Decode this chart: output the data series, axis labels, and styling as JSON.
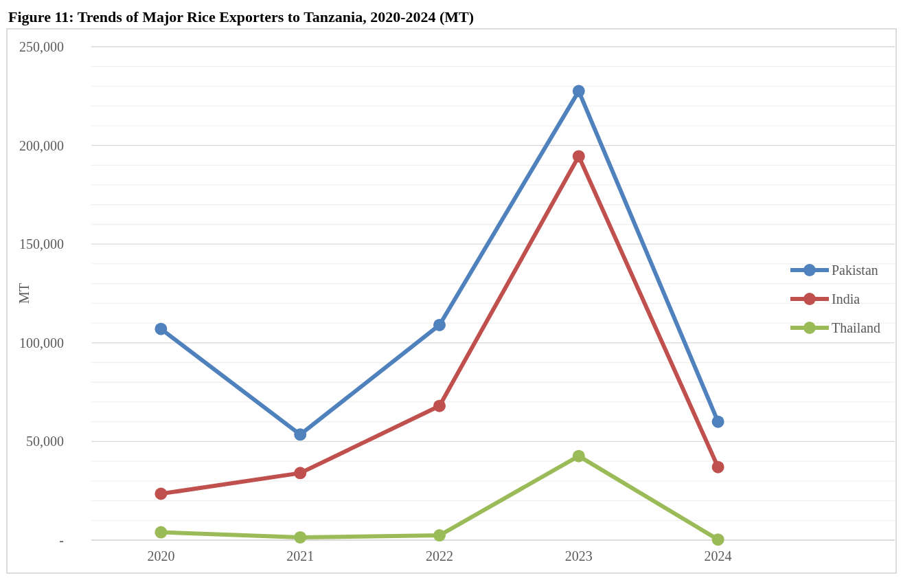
{
  "chart_data": {
    "type": "line",
    "title": "Figure 11: Trends of Major Rice Exporters to Tanzania, 2020-2024 (MT)",
    "ylabel": "MT",
    "categories": [
      "2020",
      "2021",
      "2022",
      "2023",
      "2024"
    ],
    "series": [
      {
        "name": "Pakistan",
        "color": "#4f81bd",
        "values": [
          107000,
          53500,
          109000,
          227500,
          60000
        ]
      },
      {
        "name": "India",
        "color": "#c0504d",
        "values": [
          23500,
          34000,
          68000,
          194500,
          37000
        ]
      },
      {
        "name": "Thailand",
        "color": "#9bbb59",
        "values": [
          4000,
          1400,
          2400,
          42600,
          300
        ]
      }
    ],
    "ylim": [
      0,
      250000
    ],
    "yticks": [
      {
        "value": 0,
        "label": "-"
      },
      {
        "value": 10000,
        "label": null
      },
      {
        "value": 20000,
        "label": null
      },
      {
        "value": 30000,
        "label": null
      },
      {
        "value": 40000,
        "label": null
      },
      {
        "value": 50000,
        "label": "50,000"
      },
      {
        "value": 60000,
        "label": null
      },
      {
        "value": 70000,
        "label": null
      },
      {
        "value": 80000,
        "label": null
      },
      {
        "value": 90000,
        "label": null
      },
      {
        "value": 100000,
        "label": "100,000"
      },
      {
        "value": 110000,
        "label": null
      },
      {
        "value": 120000,
        "label": null
      },
      {
        "value": 130000,
        "label": null
      },
      {
        "value": 140000,
        "label": null
      },
      {
        "value": 150000,
        "label": "150,000"
      },
      {
        "value": 160000,
        "label": null
      },
      {
        "value": 170000,
        "label": null
      },
      {
        "value": 180000,
        "label": null
      },
      {
        "value": 190000,
        "label": null
      },
      {
        "value": 200000,
        "label": "200,000"
      },
      {
        "value": 210000,
        "label": null
      },
      {
        "value": 220000,
        "label": null
      },
      {
        "value": 230000,
        "label": null
      },
      {
        "value": 240000,
        "label": null
      },
      {
        "value": 250000,
        "label": "250,000"
      }
    ],
    "grid": true,
    "legend": "right",
    "marker": "circle",
    "line_style": "solid"
  }
}
